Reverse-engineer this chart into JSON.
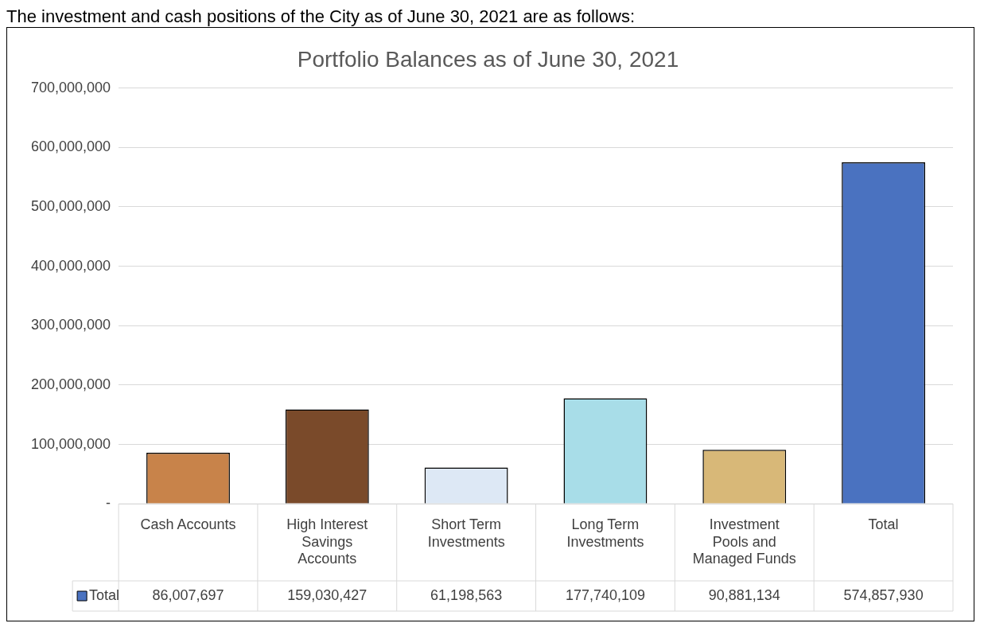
{
  "chart_data": {
    "type": "bar",
    "title": "Portfolio Balances as of June 30, 2021",
    "subtitle": "The investment and cash positions of the City as of June 30, 2021 are as follows:",
    "categories": [
      "Cash Accounts",
      "High Interest Savings Accounts",
      "Short Term Investments",
      "Long Term Investments",
      "Investment Pools and Managed Funds",
      "Total"
    ],
    "series": [
      {
        "name": "Total",
        "color": "#4a72c0",
        "colors": [
          "#c8834a",
          "#7a4a2a",
          "#dde8f5",
          "#a8dde8",
          "#d8b878",
          "#4a72c0"
        ],
        "values": [
          86007697,
          159030427,
          61198563,
          177740109,
          90881134,
          574857930
        ],
        "value_labels": [
          "86,007,697",
          "159,030,427",
          "61,198,563",
          "177,740,109",
          "90,881,134",
          "574,857,930"
        ]
      }
    ],
    "ylim": [
      0,
      700000000
    ],
    "yticks": [
      {
        "value": 0,
        "label": "-"
      },
      {
        "value": 100000000,
        "label": "100,000,000"
      },
      {
        "value": 200000000,
        "label": "200,000,000"
      },
      {
        "value": 300000000,
        "label": "300,000,000"
      },
      {
        "value": 400000000,
        "label": "400,000,000"
      },
      {
        "value": 500000000,
        "label": "500,000,000"
      },
      {
        "value": 600000000,
        "label": "600,000,000"
      },
      {
        "value": 700000000,
        "label": "700,000,000"
      }
    ],
    "grid": "y",
    "legend": "bottom"
  }
}
